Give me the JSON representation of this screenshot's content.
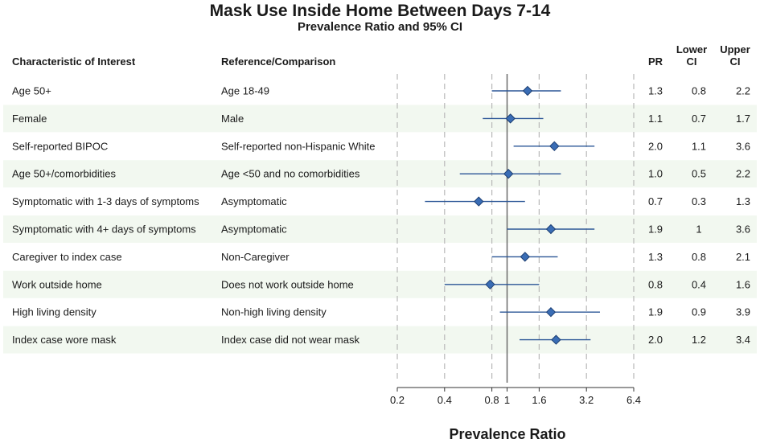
{
  "title": "Mask Use Inside Home Between Days 7-14",
  "subtitle": "Prevalence Ratio and 95% CI",
  "headers": {
    "characteristic": "Characteristic of Interest",
    "reference": "Reference/Comparison",
    "pr": "PR",
    "lower_line1": "Lower",
    "lower_line2": "CI",
    "upper_line1": "Upper",
    "upper_line2": "CI"
  },
  "chart_data": {
    "type": "forest",
    "title": "Mask Use Inside Home Between Days 7-14",
    "subtitle": "Prevalence Ratio and 95% CI",
    "xlabel": "Prevalence Ratio",
    "x_scale": "log",
    "xlim": [
      0.2,
      6.4
    ],
    "x_ticks": [
      0.2,
      0.4,
      0.8,
      1,
      1.6,
      3.2,
      6.4
    ],
    "x_tick_labels": [
      "0.2",
      "0.4",
      "0.8",
      "1",
      "1.6",
      "3.2",
      "6.4"
    ],
    "gridlines": [
      0.2,
      0.4,
      0.8,
      1.6,
      3.2,
      6.4
    ],
    "reference_line": 1,
    "marker_color": "#3a6db5",
    "ci_color": "#2a5596",
    "stripe_color": "#f2f8f0",
    "rows": [
      {
        "characteristic": "Age 50+",
        "reference": "Age 18-49",
        "pr": "1.3",
        "lower": "0.8",
        "upper": "2.2",
        "pr_plot": 1.35,
        "lower_plot": 0.8,
        "upper_plot": 2.2
      },
      {
        "characteristic": "Female",
        "reference": "Male",
        "pr": "1.1",
        "lower": "0.7",
        "upper": "1.7",
        "pr_plot": 1.05,
        "lower_plot": 0.7,
        "upper_plot": 1.7
      },
      {
        "characteristic": "Self-reported BIPOC",
        "reference": "Self-reported non-Hispanic White",
        "pr": "2.0",
        "lower": "1.1",
        "upper": "3.6",
        "pr_plot": 2.0,
        "lower_plot": 1.1,
        "upper_plot": 3.6
      },
      {
        "characteristic": "Age 50+/comorbidities",
        "reference": "Age <50 and no comorbidities",
        "pr": "1.0",
        "lower": "0.5",
        "upper": "2.2",
        "pr_plot": 1.02,
        "lower_plot": 0.5,
        "upper_plot": 2.2
      },
      {
        "characteristic": "Symptomatic with 1-3 days of symptoms",
        "reference": "Asymptomatic",
        "pr": "0.7",
        "lower": "0.3",
        "upper": "1.3",
        "pr_plot": 0.66,
        "lower_plot": 0.3,
        "upper_plot": 1.3
      },
      {
        "characteristic": "Symptomatic with 4+ days of symptoms",
        "reference": "Asymptomatic",
        "pr": "1.9",
        "lower": "1",
        "upper": "3.6",
        "pr_plot": 1.9,
        "lower_plot": 1.0,
        "upper_plot": 3.6
      },
      {
        "characteristic": "Caregiver to index case",
        "reference": "Non-Caregiver",
        "pr": "1.3",
        "lower": "0.8",
        "upper": "2.1",
        "pr_plot": 1.3,
        "lower_plot": 0.8,
        "upper_plot": 2.1
      },
      {
        "characteristic": "Work outside home",
        "reference": "Does not work outside home",
        "pr": "0.8",
        "lower": "0.4",
        "upper": "1.6",
        "pr_plot": 0.78,
        "lower_plot": 0.4,
        "upper_plot": 1.6
      },
      {
        "characteristic": "High living density",
        "reference": "Non-high living density",
        "pr": "1.9",
        "lower": "0.9",
        "upper": "3.9",
        "pr_plot": 1.9,
        "lower_plot": 0.9,
        "upper_plot": 3.9
      },
      {
        "characteristic": "Index case wore mask",
        "reference": "Index case did not wear mask",
        "pr": "2.0",
        "lower": "1.2",
        "upper": "3.4",
        "pr_plot": 2.05,
        "lower_plot": 1.2,
        "upper_plot": 3.4
      }
    ]
  }
}
